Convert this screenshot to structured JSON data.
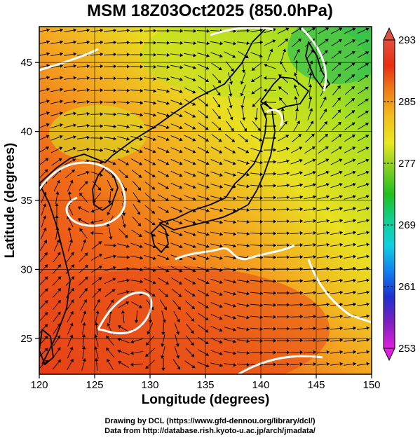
{
  "title": "MSM 18Z03Oct2025 (850.0hPa)",
  "x_axis": {
    "label": "Longitude (degrees)",
    "ticks": [
      120,
      125,
      130,
      135,
      140,
      145,
      150
    ],
    "range": [
      120,
      150
    ]
  },
  "y_axis": {
    "label": "Latitude  (degrees)",
    "ticks": [
      25,
      30,
      35,
      40,
      45
    ],
    "range": [
      22.4,
      47.6
    ]
  },
  "colorbar": {
    "ticks": [
      253,
      261,
      269,
      277,
      285,
      293
    ],
    "range": [
      253,
      293
    ],
    "stops": [
      "#e020e0",
      "#8020c0",
      "#2030d0",
      "#1080f0",
      "#10d0e0",
      "#10d090",
      "#20c020",
      "#80d020",
      "#e8e820",
      "#f0c020",
      "#f08018",
      "#e83010",
      "#e05040"
    ]
  },
  "grid": true,
  "credits": [
    "Drawing by DCL (https://www.gfd-dennou.org/library/dcl/)",
    "Data from http://database.rish.kyoto-u.ac.jp/arch/jmadata/"
  ]
}
